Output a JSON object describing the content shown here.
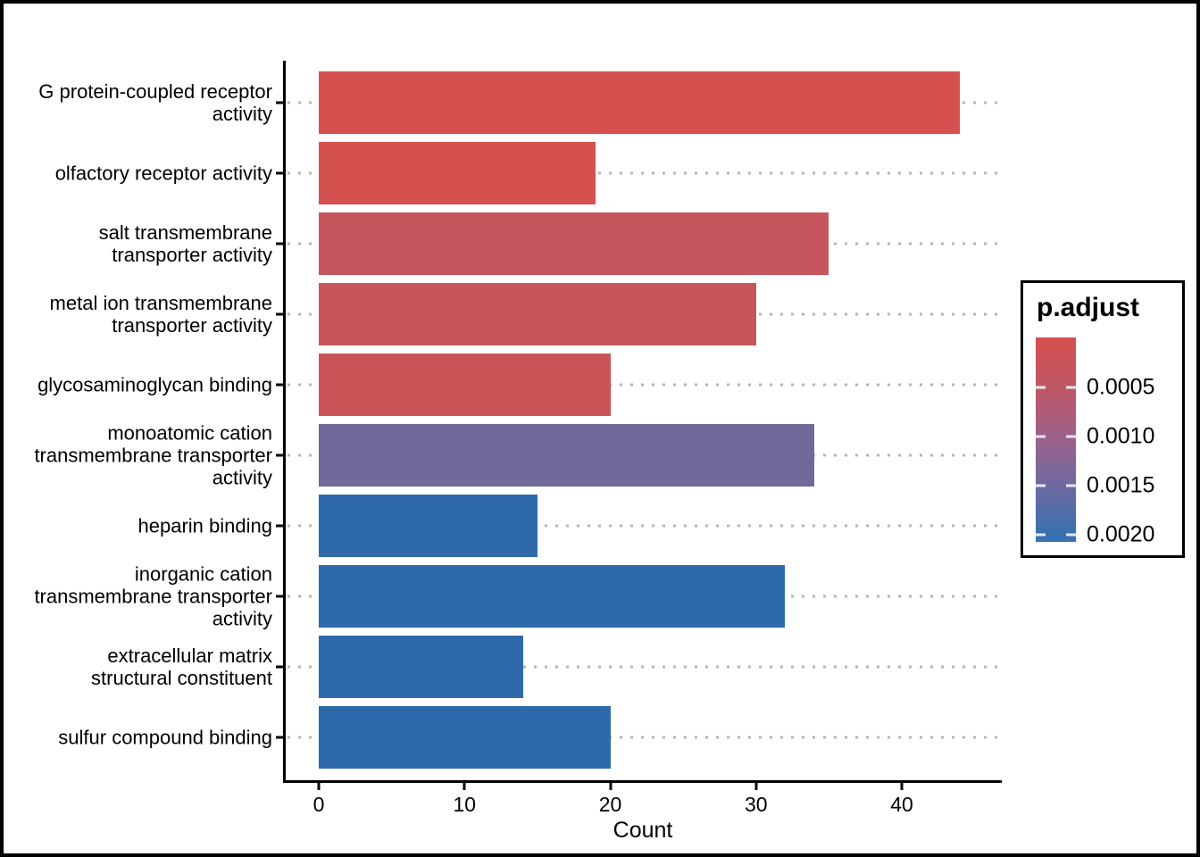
{
  "figure": {
    "background": "#ffffff",
    "border_color": "#000000"
  },
  "chart_data": {
    "type": "bar",
    "orientation": "horizontal",
    "title": "",
    "xlabel": "Count",
    "ylabel": "",
    "xlim": [
      0,
      46.5
    ],
    "x_ticks": [
      0,
      10,
      20,
      30,
      40
    ],
    "grid": "dotted gray horizontal line per category row",
    "legend_position": "right",
    "categories": [
      "G protein-coupled receptor activity",
      "olfactory receptor activity",
      "salt transmembrane transporter activity",
      "metal ion transmembrane transporter activity",
      "glycosaminoglycan binding",
      "monoatomic cation transmembrane transporter activity",
      "heparin binding",
      "inorganic cation transmembrane transporter activity",
      "extracellular matrix structural constituent",
      "sulfur compound binding"
    ],
    "label_lines": [
      [
        "G protein-coupled receptor",
        "activity"
      ],
      [
        "olfactory receptor activity"
      ],
      [
        "salt transmembrane",
        "transporter activity"
      ],
      [
        "metal ion transmembrane",
        "transporter activity"
      ],
      [
        "glycosaminoglycan binding"
      ],
      [
        "monoatomic cation",
        "transmembrane transporter",
        "activity"
      ],
      [
        "heparin binding"
      ],
      [
        "inorganic cation",
        "transmembrane transporter",
        "activity"
      ],
      [
        "extracellular matrix",
        "structural constituent"
      ],
      [
        "sulfur compound binding"
      ]
    ],
    "values": [
      44,
      19,
      35,
      30,
      20,
      34,
      15,
      32,
      14,
      20
    ],
    "bar_colors": [
      "#d5504f",
      "#d4514f",
      "#c5565e",
      "#c7555b",
      "#ca5458",
      "#6f6a9a",
      "#2e6aab",
      "#2e6aab",
      "#2e6aab",
      "#2e6aab"
    ],
    "series_color_meaning": "p.adjust (red = lower, blue = higher)"
  },
  "axes": {
    "grid_color": "#b5b5b5",
    "axis_color": "#000000"
  },
  "legend": {
    "title": "p.adjust",
    "tick_labels": [
      "0.0005",
      "0.0010",
      "0.0015",
      "0.0020"
    ],
    "tick_positions_pct": [
      24.5,
      48.5,
      72.5,
      96.5
    ],
    "gradient_stops": [
      {
        "pct": 0,
        "color": "#d5504f"
      },
      {
        "pct": 24.5,
        "color": "#bf5767"
      },
      {
        "pct": 48.5,
        "color": "#9d6089"
      },
      {
        "pct": 72.5,
        "color": "#6e69a1"
      },
      {
        "pct": 96.5,
        "color": "#3971b0"
      },
      {
        "pct": 100,
        "color": "#3374b4"
      }
    ]
  }
}
